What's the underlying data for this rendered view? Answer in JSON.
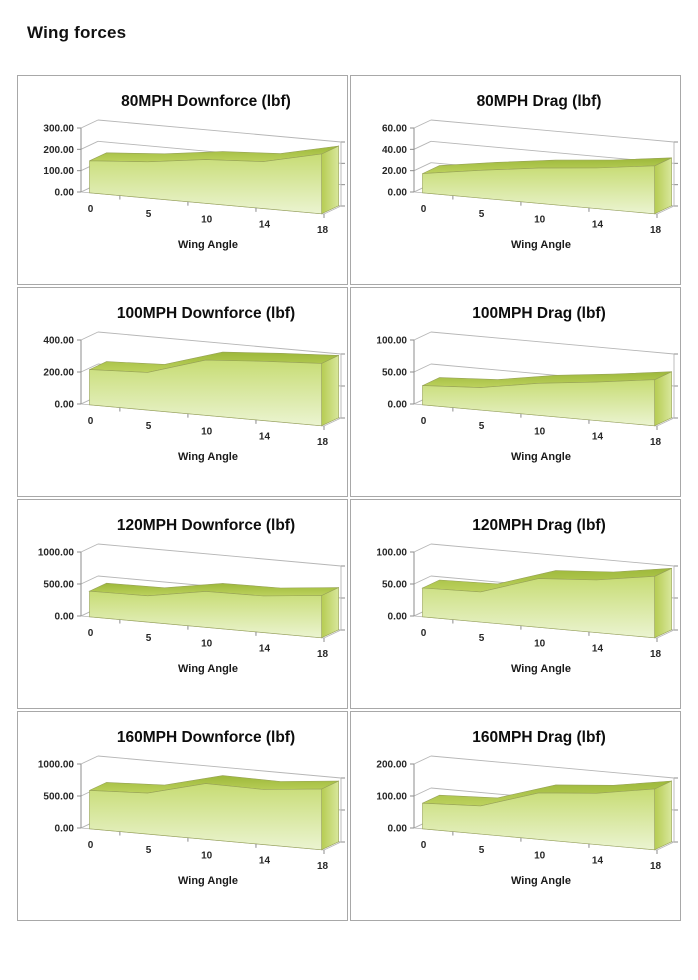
{
  "page": {
    "heading": "Wing forces"
  },
  "colors": {
    "area_top_dark": "#9db83a",
    "area_top_light": "#bdd25e",
    "area_front_top": "#c7dc74",
    "area_front_bottom": "#ebf4d1",
    "area_side_top": "#b6cc52",
    "area_side_bottom": "#d8e79c",
    "outline": "#97a257",
    "gridline": "#b6b6b6",
    "axis": "#8c8c8c",
    "box_border": "#a8a8a8",
    "text": "#262626"
  },
  "chart_data": [
    {
      "type": "area",
      "title": "80MPH Downforce (lbf)",
      "xlabel": "Wing Angle",
      "categories": [
        0,
        5,
        10,
        14,
        18
      ],
      "x_tick_labels": [
        "0",
        "5",
        "10",
        "14",
        "18"
      ],
      "values": [
        150,
        170,
        205,
        220,
        280
      ],
      "yticks": [
        0,
        100,
        200,
        300
      ],
      "ytick_labels": [
        "0.00",
        "100.00",
        "200.00",
        "300.00"
      ],
      "ylim": [
        0,
        300
      ],
      "grid": true,
      "legend": false
    },
    {
      "type": "area",
      "title": "80MPH Drag (lbf)",
      "xlabel": "Wing Angle",
      "categories": [
        0,
        5,
        10,
        14,
        18
      ],
      "x_tick_labels": [
        "0",
        "5",
        "10",
        "14",
        "18"
      ],
      "values": [
        18,
        26,
        33,
        38,
        45
      ],
      "yticks": [
        0,
        20,
        40,
        60
      ],
      "ytick_labels": [
        "0.00",
        "20.00",
        "40.00",
        "60.00"
      ],
      "ylim": [
        0,
        60
      ],
      "grid": true,
      "legend": false
    },
    {
      "type": "area",
      "title": "100MPH Downforce (lbf)",
      "xlabel": "Wing Angle",
      "categories": [
        0,
        5,
        10,
        14,
        18
      ],
      "x_tick_labels": [
        "0",
        "5",
        "10",
        "14",
        "18"
      ],
      "values": [
        220,
        235,
        345,
        370,
        390
      ],
      "yticks": [
        0,
        200,
        400
      ],
      "ytick_labels": [
        "0.00",
        "200.00",
        "400.00"
      ],
      "ylim": [
        0,
        400
      ],
      "grid": true,
      "legend": false
    },
    {
      "type": "area",
      "title": "100MPH Drag (lbf)",
      "xlabel": "Wing Angle",
      "categories": [
        0,
        5,
        10,
        14,
        18
      ],
      "x_tick_labels": [
        "0",
        "5",
        "10",
        "14",
        "18"
      ],
      "values": [
        30,
        35,
        50,
        60,
        72
      ],
      "yticks": [
        0,
        50,
        100
      ],
      "ytick_labels": [
        "0.00",
        "50.00",
        "100.00"
      ],
      "ylim": [
        0,
        100
      ],
      "grid": true,
      "legend": false
    },
    {
      "type": "area",
      "title": "120MPH Downforce (lbf)",
      "xlabel": "Wing Angle",
      "categories": [
        0,
        5,
        10,
        14,
        18
      ],
      "x_tick_labels": [
        "0",
        "5",
        "10",
        "14",
        "18"
      ],
      "values": [
        400,
        410,
        560,
        570,
        660
      ],
      "yticks": [
        0,
        500,
        1000
      ],
      "ytick_labels": [
        "0.00",
        "500.00",
        "1000.00"
      ],
      "ylim": [
        0,
        1000
      ],
      "grid": true,
      "legend": false
    },
    {
      "type": "area",
      "title": "120MPH Drag (lbf)",
      "xlabel": "Wing Angle",
      "categories": [
        0,
        5,
        10,
        14,
        18
      ],
      "x_tick_labels": [
        "0",
        "5",
        "10",
        "14",
        "18"
      ],
      "values": [
        45,
        47,
        76,
        82,
        96
      ],
      "yticks": [
        0,
        50,
        100
      ],
      "ytick_labels": [
        "0.00",
        "50.00",
        "100.00"
      ],
      "ylim": [
        0,
        100
      ],
      "grid": true,
      "legend": false
    },
    {
      "type": "area",
      "title": "160MPH Downforce (lbf)",
      "xlabel": "Wing Angle",
      "categories": [
        0,
        5,
        10,
        14,
        18
      ],
      "x_tick_labels": [
        "0",
        "5",
        "10",
        "14",
        "18"
      ],
      "values": [
        600,
        640,
        870,
        860,
        950
      ],
      "yticks": [
        0,
        500,
        1000
      ],
      "ytick_labels": [
        "0.00",
        "500.00",
        "1000.00"
      ],
      "ylim": [
        0,
        1000
      ],
      "grid": true,
      "legend": false
    },
    {
      "type": "area",
      "title": "160MPH Drag (lbf)",
      "xlabel": "Wing Angle",
      "categories": [
        0,
        5,
        10,
        14,
        18
      ],
      "x_tick_labels": [
        "0",
        "5",
        "10",
        "14",
        "18"
      ],
      "values": [
        80,
        88,
        145,
        160,
        190
      ],
      "yticks": [
        0,
        100,
        200
      ],
      "ytick_labels": [
        "0.00",
        "100.00",
        "200.00"
      ],
      "ylim": [
        0,
        200
      ],
      "grid": true,
      "legend": false
    }
  ]
}
